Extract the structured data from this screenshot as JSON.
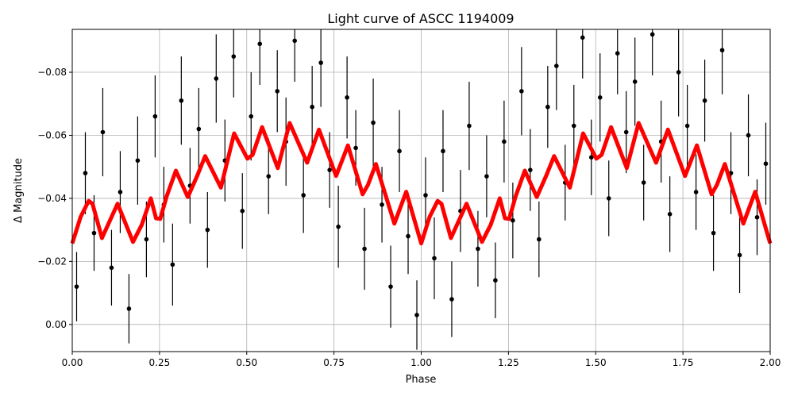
{
  "chart_data": {
    "type": "scatter",
    "title": "Light curve of ASCC 1194009",
    "xlabel": "Phase",
    "ylabel": "Δ Magnitude",
    "xlim": [
      0,
      2
    ],
    "ylim": [
      0.0086,
      -0.0936
    ],
    "y_inverted": true,
    "grid": true,
    "xticks": [
      0,
      0.25,
      0.5,
      0.75,
      1.0,
      1.25,
      1.5,
      1.75,
      2.0
    ],
    "xtick_labels": [
      "0.00",
      "0.25",
      "0.50",
      "0.75",
      "1.00",
      "1.25",
      "1.50",
      "1.75",
      "2.00"
    ],
    "yticks": [
      0,
      -0.02,
      -0.04,
      -0.06,
      -0.08
    ],
    "ytick_labels": [
      "0.00",
      "−0.02",
      "−0.04",
      "−0.06",
      "−0.08"
    ],
    "colors": {
      "observations": "#000000",
      "model": "#ff0000",
      "grid": "#b0b0b0"
    },
    "observations": {
      "x": [
        0.0125,
        0.0375,
        0.0625,
        0.0875,
        0.1125,
        0.1375,
        0.1625,
        0.1875,
        0.2125,
        0.2375,
        0.2625,
        0.2875,
        0.3125,
        0.3375,
        0.3625,
        0.3875,
        0.4125,
        0.4375,
        0.4625,
        0.4875,
        0.5125,
        0.5375,
        0.5625,
        0.5875,
        0.6125,
        0.6375,
        0.6625,
        0.6875,
        0.7125,
        0.7375,
        0.7625,
        0.7875,
        0.8125,
        0.8375,
        0.8625,
        0.8875,
        0.9125,
        0.9375,
        0.9625,
        0.9875,
        1.0125,
        1.0375,
        1.0625,
        1.0875,
        1.1125,
        1.1375,
        1.1625,
        1.1875,
        1.2125,
        1.2375,
        1.2625,
        1.2875,
        1.3125,
        1.3375,
        1.3625,
        1.3875,
        1.4125,
        1.4375,
        1.4625,
        1.4875,
        1.5125,
        1.5375,
        1.5625,
        1.5875,
        1.6125,
        1.6375,
        1.6625,
        1.6875,
        1.7125,
        1.7375,
        1.7625,
        1.7875,
        1.8125,
        1.8375,
        1.8625,
        1.8875,
        1.9125,
        1.9375,
        1.9625,
        1.9875
      ],
      "y": [
        -0.012,
        -0.048,
        -0.029,
        -0.061,
        -0.018,
        -0.042,
        -0.005,
        -0.052,
        -0.027,
        -0.066,
        -0.038,
        -0.019,
        -0.071,
        -0.044,
        -0.062,
        -0.03,
        -0.078,
        -0.052,
        -0.085,
        -0.036,
        -0.066,
        -0.089,
        -0.047,
        -0.074,
        -0.058,
        -0.09,
        -0.041,
        -0.069,
        -0.083,
        -0.049,
        -0.031,
        -0.072,
        -0.056,
        -0.024,
        -0.064,
        -0.038,
        -0.012,
        -0.055,
        -0.028,
        -0.003,
        -0.041,
        -0.021,
        -0.055,
        -0.008,
        -0.036,
        -0.063,
        -0.024,
        -0.047,
        -0.014,
        -0.058,
        -0.033,
        -0.074,
        -0.049,
        -0.027,
        -0.069,
        -0.082,
        -0.045,
        -0.063,
        -0.091,
        -0.053,
        -0.072,
        -0.04,
        -0.086,
        -0.061,
        -0.077,
        -0.045,
        -0.092,
        -0.058,
        -0.035,
        -0.08,
        -0.063,
        -0.042,
        -0.071,
        -0.029,
        -0.087,
        -0.048,
        -0.022,
        -0.06,
        -0.034,
        -0.051
      ],
      "yerr": [
        0.011,
        0.013,
        0.012,
        0.014,
        0.012,
        0.013,
        0.011,
        0.014,
        0.012,
        0.013,
        0.012,
        0.013,
        0.014,
        0.012,
        0.013,
        0.012,
        0.014,
        0.013,
        0.013,
        0.012,
        0.014,
        0.013,
        0.012,
        0.013,
        0.014,
        0.013,
        0.012,
        0.013,
        0.014,
        0.012,
        0.013,
        0.013,
        0.012,
        0.013,
        0.014,
        0.012,
        0.013,
        0.013,
        0.012,
        0.011,
        0.012,
        0.013,
        0.013,
        0.012,
        0.013,
        0.014,
        0.012,
        0.013,
        0.012,
        0.013,
        0.012,
        0.014,
        0.013,
        0.012,
        0.013,
        0.014,
        0.012,
        0.013,
        0.013,
        0.012,
        0.014,
        0.012,
        0.013,
        0.013,
        0.014,
        0.012,
        0.013,
        0.013,
        0.012,
        0.014,
        0.013,
        0.012,
        0.013,
        0.012,
        0.014,
        0.013,
        0.012,
        0.013,
        0.012,
        0.013
      ]
    },
    "model": {
      "x": [
        0.0,
        0.024,
        0.047,
        0.058,
        0.085,
        0.13,
        0.174,
        0.199,
        0.225,
        0.24,
        0.252,
        0.271,
        0.297,
        0.331,
        0.358,
        0.381,
        0.426,
        0.464,
        0.502,
        0.517,
        0.544,
        0.589,
        0.623,
        0.673,
        0.707,
        0.756,
        0.79,
        0.832,
        0.847,
        0.87,
        0.923,
        0.957,
        1.0,
        1.024,
        1.047,
        1.058,
        1.085,
        1.13,
        1.174,
        1.199,
        1.225,
        1.24,
        1.252,
        1.271,
        1.297,
        1.331,
        1.358,
        1.381,
        1.426,
        1.464,
        1.502,
        1.517,
        1.544,
        1.589,
        1.623,
        1.673,
        1.707,
        1.756,
        1.79,
        1.832,
        1.847,
        1.87,
        1.923,
        1.957,
        2.0
      ],
      "y": [
        -0.0257,
        -0.0341,
        -0.0392,
        -0.0383,
        -0.0274,
        -0.0383,
        -0.0262,
        -0.0316,
        -0.04,
        -0.0337,
        -0.0335,
        -0.0408,
        -0.0488,
        -0.0404,
        -0.0471,
        -0.0534,
        -0.0434,
        -0.0606,
        -0.0526,
        -0.0538,
        -0.0626,
        -0.0496,
        -0.0639,
        -0.0513,
        -0.0618,
        -0.0471,
        -0.0568,
        -0.0413,
        -0.0442,
        -0.0509,
        -0.032,
        -0.0421,
        -0.0257,
        -0.0341,
        -0.0392,
        -0.0383,
        -0.0274,
        -0.0383,
        -0.0262,
        -0.0316,
        -0.04,
        -0.0337,
        -0.0335,
        -0.0408,
        -0.0488,
        -0.0404,
        -0.0471,
        -0.0534,
        -0.0434,
        -0.0606,
        -0.0526,
        -0.0538,
        -0.0626,
        -0.0496,
        -0.0639,
        -0.0513,
        -0.0618,
        -0.0471,
        -0.0568,
        -0.0413,
        -0.0442,
        -0.0509,
        -0.032,
        -0.0421,
        -0.0257
      ]
    }
  }
}
